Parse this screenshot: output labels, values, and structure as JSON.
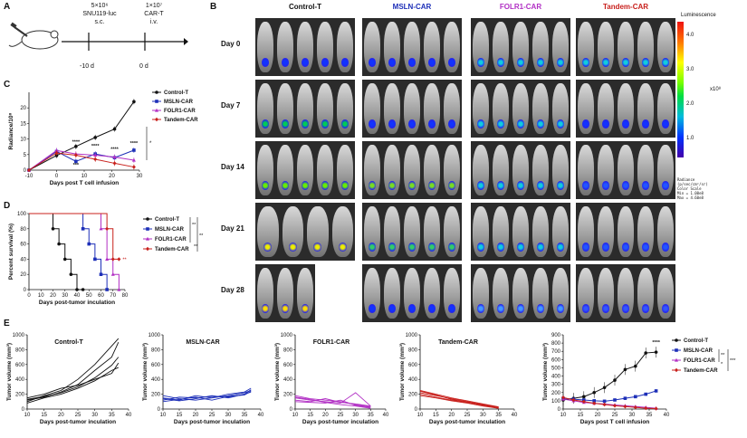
{
  "panels": {
    "A": {
      "letter": "A",
      "cells": "5×10⁶",
      "cell_line": "SNU119-luc",
      "route1": "s.c.",
      "cart_dose": "1×10⁷",
      "cart": "CAR-T",
      "route2": "i.v.",
      "t1": "-10 d",
      "t2": "0 d"
    },
    "B": {
      "letter": "B",
      "groups": [
        {
          "name": "Control-T",
          "color": "#111111"
        },
        {
          "name": "MSLN-CAR",
          "color": "#1d2fb8"
        },
        {
          "name": "FOLR1-CAR",
          "color": "#b12fc4"
        },
        {
          "name": "Tandem-CAR",
          "color": "#c8201c"
        }
      ],
      "days": [
        "Day 0",
        "Day 7",
        "Day 14",
        "Day 21",
        "Day 28"
      ],
      "scale_title": "Luminescence",
      "scale_ticks": [
        "4.0",
        "3.0",
        "2.0",
        "1.0"
      ],
      "scale_unit": "x10⁸",
      "scale_caption": [
        "Radiance",
        "(p/sec/cm²/sr)",
        "",
        "Color Scale",
        "Min = 1.00e8",
        "Max = 4.60e8"
      ]
    },
    "C": {
      "letter": "C",
      "ylabel": "Radiance/10⁸",
      "xlabel": "Days post T cell infusion",
      "legend": [
        "Control-T",
        "MSLN-CAR",
        "FOLR1-CAR",
        "Tandem-CAR"
      ],
      "sig": [
        "***",
        "****",
        "****",
        "****",
        "****",
        "*"
      ]
    },
    "D": {
      "letter": "D",
      "ylabel": "Percent survival (%)",
      "xlabel": "Days post-tumor inculation",
      "legend": [
        "Control-T",
        "MSLN-CAR",
        "FOLR1-CAR",
        "Tandem-CAR"
      ],
      "sig": [
        "**",
        "**",
        "**",
        "**"
      ]
    },
    "E": {
      "letter": "E",
      "ylabel": "Tumor volume (mm³)",
      "xlabel": "Days post-tumor inculation",
      "xlabel_last": "Days post T cell infusion",
      "titles": [
        "Control-T",
        "MSLN-CAR",
        "FOLR1-CAR",
        "Tandem-CAR"
      ],
      "legend": [
        "Control-T",
        "MSLN-CAR",
        "FOLR1-CAR",
        "Tandem-CAR"
      ],
      "sig": [
        "****",
        "**",
        "*",
        "***"
      ]
    }
  },
  "chart_data": [
    {
      "type": "line",
      "panel": "C",
      "x": [
        -10,
        0,
        7,
        14,
        21,
        28
      ],
      "xlim": [
        -10,
        30
      ],
      "ylim": [
        0,
        25
      ],
      "ylabel": "Radiance/10⁸",
      "xlabel": "Days post T cell infusion",
      "series": [
        {
          "name": "Control-T",
          "color": "#111111",
          "values": [
            0,
            4.7,
            7.6,
            10.5,
            13.2,
            22
          ]
        },
        {
          "name": "MSLN-CAR",
          "color": "#1d2fb8",
          "values": [
            0,
            6.0,
            2.8,
            5.2,
            4.0,
            6.4
          ]
        },
        {
          "name": "FOLR1-CAR",
          "color": "#b12fc4",
          "values": [
            0,
            6.3,
            5.2,
            4.8,
            4.2,
            3.2
          ]
        },
        {
          "name": "Tandem-CAR",
          "color": "#c8201c",
          "values": [
            0,
            5.5,
            4.8,
            3.5,
            2.2,
            1.0
          ]
        }
      ]
    },
    {
      "type": "line",
      "panel": "D",
      "xlim": [
        0,
        80
      ],
      "ylim": [
        0,
        100
      ],
      "ylabel": "Percent survival (%)",
      "xlabel": "Days post-tumor inculation",
      "series": [
        {
          "name": "Control-T",
          "color": "#111111",
          "x": [
            0,
            20,
            25,
            30,
            35,
            40,
            45
          ],
          "values": [
            100,
            80,
            60,
            40,
            20,
            0,
            0
          ]
        },
        {
          "name": "MSLN-CAR",
          "color": "#1d2fb8",
          "x": [
            0,
            45,
            50,
            55,
            60,
            65
          ],
          "values": [
            100,
            80,
            60,
            40,
            20,
            0
          ]
        },
        {
          "name": "FOLR1-CAR",
          "color": "#b12fc4",
          "x": [
            0,
            60,
            65,
            70,
            75
          ],
          "values": [
            100,
            80,
            40,
            20,
            0
          ]
        },
        {
          "name": "Tandem-CAR",
          "color": "#c8201c",
          "x": [
            0,
            65,
            70,
            75
          ],
          "values": [
            100,
            80,
            40,
            40
          ]
        }
      ]
    },
    {
      "type": "line",
      "panel": "E1",
      "title": "Control-T",
      "xlim": [
        10,
        40
      ],
      "ylim": [
        0,
        1000
      ],
      "xlabel": "Days post-tumor inculation",
      "ylabel": "Tumor volume (mm³)",
      "x": [
        10,
        15,
        20,
        25,
        30,
        35,
        37
      ],
      "series": [
        {
          "name": "",
          "color": "#111111",
          "values": [
            100,
            180,
            250,
            400,
            600,
            850,
            950
          ]
        },
        {
          "name": "",
          "color": "#111111",
          "values": [
            120,
            160,
            230,
            330,
            520,
            700,
            900
          ]
        },
        {
          "name": "",
          "color": "#111111",
          "values": [
            150,
            200,
            280,
            320,
            400,
            480,
            620
          ]
        },
        {
          "name": "",
          "color": "#111111",
          "values": [
            80,
            150,
            200,
            280,
            380,
            520,
            560
          ]
        },
        {
          "name": "",
          "color": "#111111",
          "values": [
            130,
            170,
            220,
            300,
            420,
            590,
            700
          ]
        }
      ]
    },
    {
      "type": "line",
      "panel": "E2",
      "title": "MSLN-CAR",
      "xlim": [
        10,
        40
      ],
      "ylim": [
        0,
        1000
      ],
      "xlabel": "Days post-tumor inculation",
      "ylabel": "Tumor volume (mm³)",
      "x": [
        10,
        15,
        20,
        25,
        30,
        35,
        37
      ],
      "series": [
        {
          "name": "",
          "color": "#1d2fb8",
          "values": [
            150,
            120,
            180,
            150,
            200,
            230,
            280
          ]
        },
        {
          "name": "",
          "color": "#1d2fb8",
          "values": [
            120,
            160,
            150,
            170,
            160,
            200,
            260
          ]
        },
        {
          "name": "",
          "color": "#1d2fb8",
          "values": [
            180,
            140,
            120,
            150,
            180,
            220,
            250
          ]
        },
        {
          "name": "",
          "color": "#1d2fb8",
          "values": [
            100,
            130,
            160,
            120,
            170,
            190,
            240
          ]
        },
        {
          "name": "",
          "color": "#1d2fb8",
          "values": [
            140,
            110,
            140,
            180,
            150,
            200,
            230
          ]
        }
      ]
    },
    {
      "type": "line",
      "panel": "E3",
      "title": "FOLR1-CAR",
      "xlim": [
        10,
        40
      ],
      "ylim": [
        0,
        1000
      ],
      "xlabel": "Days post-tumor inculation",
      "ylabel": "Tumor volume (mm³)",
      "x": [
        10,
        15,
        20,
        25,
        30,
        35
      ],
      "series": [
        {
          "name": "",
          "color": "#b12fc4",
          "values": [
            150,
            120,
            100,
            80,
            220,
            40
          ]
        },
        {
          "name": "",
          "color": "#b12fc4",
          "values": [
            180,
            140,
            120,
            100,
            60,
            30
          ]
        },
        {
          "name": "",
          "color": "#b12fc4",
          "values": [
            120,
            100,
            140,
            90,
            70,
            40
          ]
        },
        {
          "name": "",
          "color": "#b12fc4",
          "values": [
            100,
            90,
            80,
            120,
            50,
            20
          ]
        },
        {
          "name": "",
          "color": "#b12fc4",
          "values": [
            160,
            130,
            90,
            60,
            40,
            10
          ]
        }
      ]
    },
    {
      "type": "line",
      "panel": "E4",
      "title": "Tandem-CAR",
      "xlim": [
        10,
        40
      ],
      "ylim": [
        0,
        1000
      ],
      "xlabel": "Days post-tumor inculation",
      "ylabel": "Tumor volume (mm³)",
      "x": [
        10,
        15,
        20,
        25,
        30,
        35
      ],
      "series": [
        {
          "name": "",
          "color": "#c8201c",
          "values": [
            220,
            180,
            140,
            100,
            60,
            20
          ]
        },
        {
          "name": "",
          "color": "#c8201c",
          "values": [
            250,
            200,
            150,
            110,
            70,
            30
          ]
        },
        {
          "name": "",
          "color": "#c8201c",
          "values": [
            200,
            160,
            120,
            90,
            50,
            10
          ]
        },
        {
          "name": "",
          "color": "#c8201c",
          "values": [
            180,
            150,
            110,
            80,
            40,
            10
          ]
        },
        {
          "name": "",
          "color": "#c8201c",
          "values": [
            240,
            190,
            130,
            90,
            60,
            20
          ]
        }
      ]
    },
    {
      "type": "line",
      "panel": "E5",
      "xlim": [
        10,
        40
      ],
      "ylim": [
        0,
        900
      ],
      "xlabel": "Days post T cell infusion",
      "ylabel": "Tumor volume (mm³)",
      "x": [
        10,
        13,
        16,
        19,
        22,
        25,
        28,
        31,
        34,
        37
      ],
      "series": [
        {
          "name": "Control-T",
          "color": "#111111",
          "values": [
            110,
            130,
            150,
            200,
            260,
            350,
            480,
            520,
            680,
            690
          ]
        },
        {
          "name": "MSLN-CAR",
          "color": "#1d2fb8",
          "values": [
            130,
            120,
            110,
            100,
            95,
            110,
            130,
            150,
            180,
            220
          ]
        },
        {
          "name": "FOLR1-CAR",
          "color": "#b12fc4",
          "values": [
            120,
            100,
            80,
            70,
            60,
            50,
            40,
            30,
            20,
            10
          ]
        },
        {
          "name": "Tandem-CAR",
          "color": "#c8201c",
          "values": [
            140,
            110,
            90,
            70,
            55,
            40,
            30,
            20,
            10,
            5
          ]
        }
      ]
    }
  ]
}
